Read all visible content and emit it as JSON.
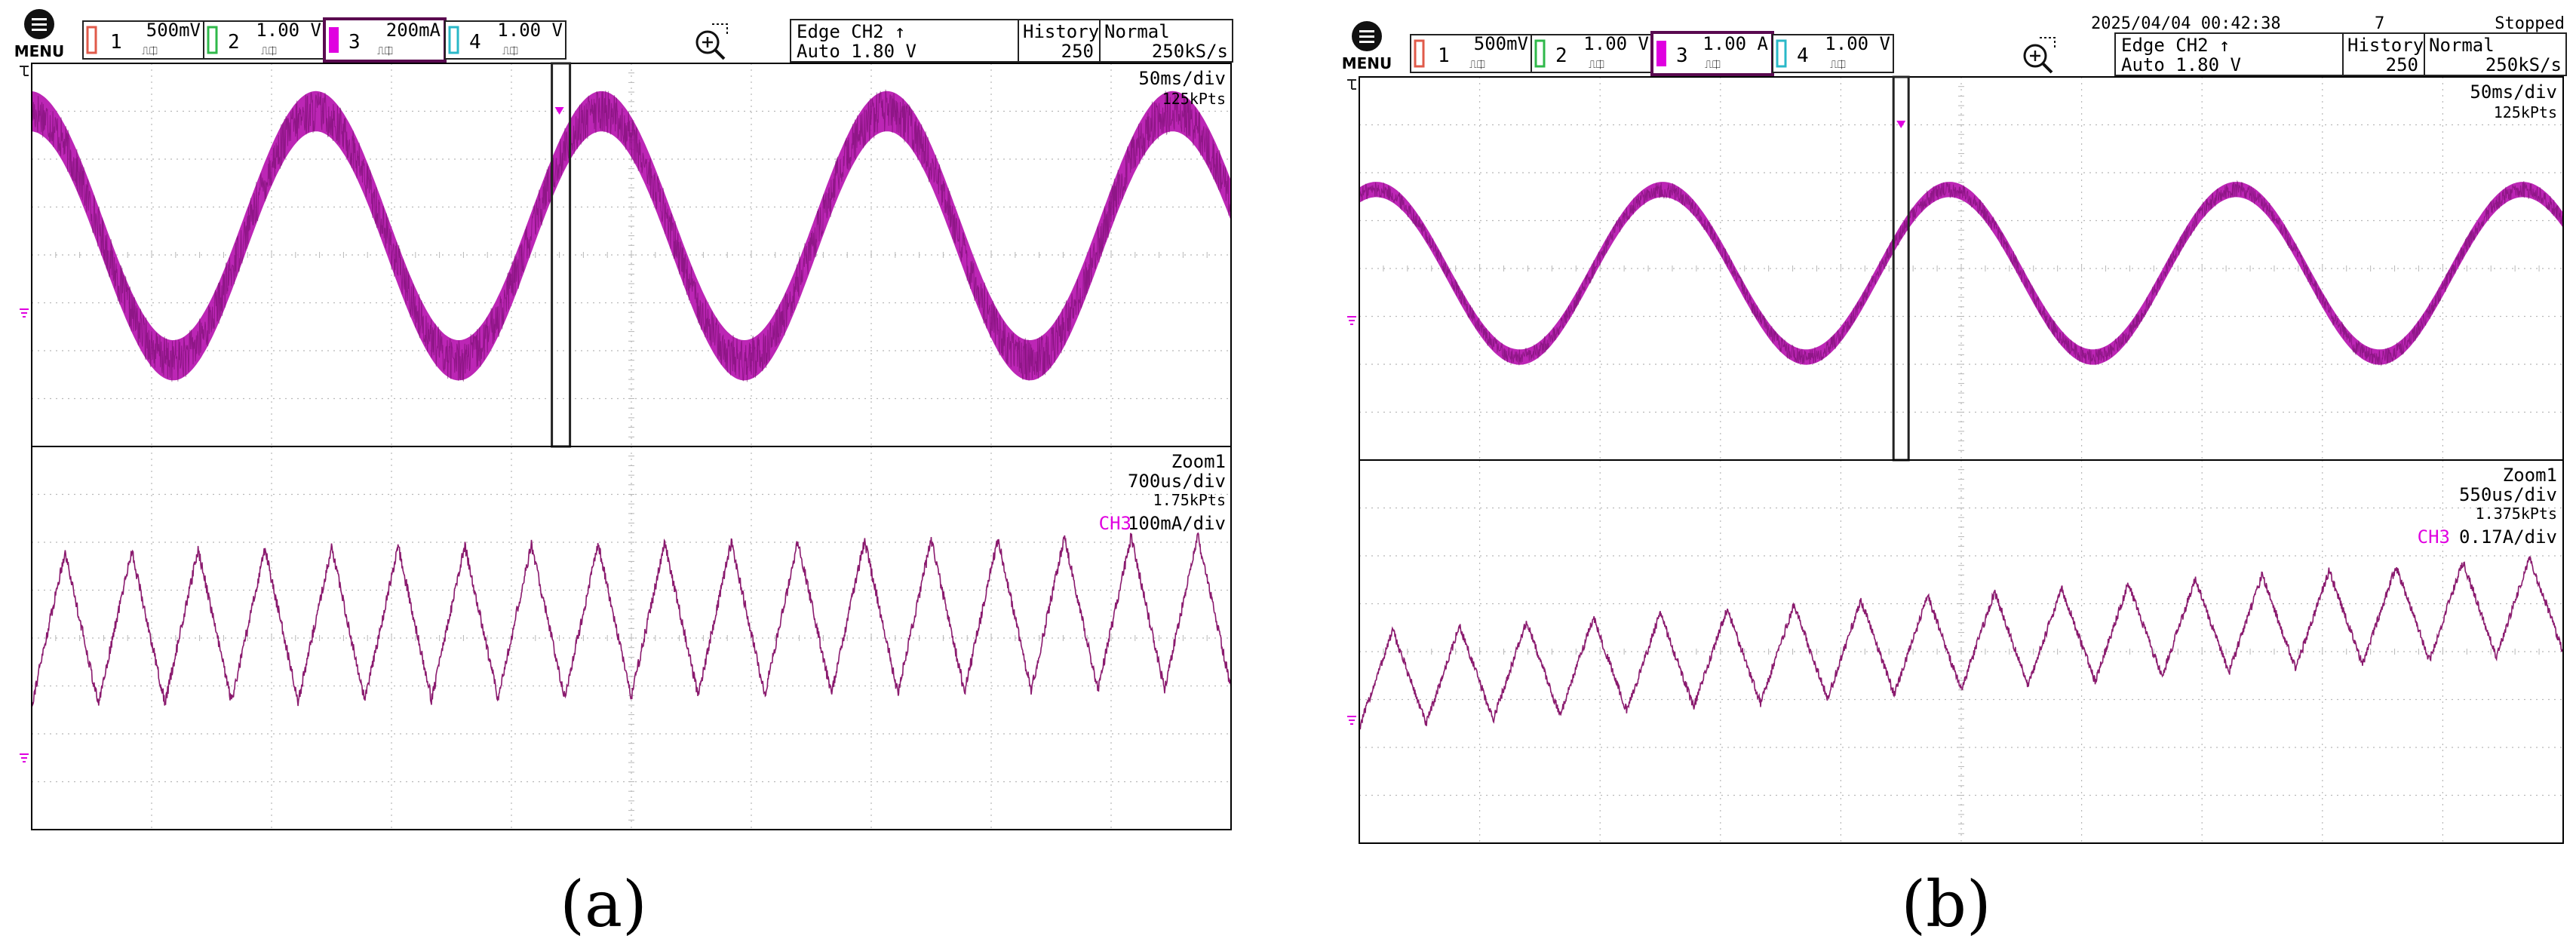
{
  "colors": {
    "ch1": "#e05a4a",
    "ch2": "#2fb84a",
    "ch3": "#e000e0",
    "ch4": "#2ab8c8",
    "trace_wide": "#b000a8",
    "trace_wide_dark": "#6a0a60",
    "trace_zoom": "#8a1a6e",
    "grid": "#b8b8b8",
    "frame": "#000000"
  },
  "panels": [
    {
      "caption": "(a)",
      "menu_label": "MENU",
      "date_time": "",
      "acq_count": "",
      "run_state": "",
      "channels": [
        {
          "num": "1",
          "scale": "500mV",
          "color_key": "ch1",
          "selected": false
        },
        {
          "num": "2",
          "scale": "1.00 V",
          "color_key": "ch2",
          "selected": false
        },
        {
          "num": "3",
          "scale": "200mA",
          "color_key": "ch3",
          "selected": true
        },
        {
          "num": "4",
          "scale": "1.00 V",
          "color_key": "ch4",
          "selected": false
        }
      ],
      "trigger": {
        "type": "Edge CH2 ↑",
        "mode": "Auto 1.80 V"
      },
      "history": {
        "label": "History",
        "value": "250"
      },
      "acq": {
        "mode": "Normal",
        "rate": "250kS/s"
      },
      "main": {
        "timebase": "50ms/div",
        "points": "125kPts"
      },
      "zoom": {
        "label": "Zoom1",
        "timebase": "700us/div",
        "points": "1.75kPts",
        "ch_label": "CH3",
        "ch_scale": "100mA/div"
      }
    },
    {
      "caption": "(b)",
      "menu_label": "MENU",
      "date_time": "2025/04/04 00:42:38",
      "acq_count": "7",
      "run_state": "Stopped",
      "channels": [
        {
          "num": "1",
          "scale": "500mV",
          "color_key": "ch1",
          "selected": false
        },
        {
          "num": "2",
          "scale": "1.00 V",
          "color_key": "ch2",
          "selected": false
        },
        {
          "num": "3",
          "scale": "1.00 A",
          "color_key": "ch3",
          "selected": true
        },
        {
          "num": "4",
          "scale": "1.00 V",
          "color_key": "ch4",
          "selected": false
        }
      ],
      "trigger": {
        "type": "Edge CH2 ↑",
        "mode": "Auto 1.80 V"
      },
      "history": {
        "label": "History",
        "value": "250"
      },
      "acq": {
        "mode": "Normal",
        "rate": "250kS/s"
      },
      "main": {
        "timebase": "50ms/div",
        "points": "125kPts"
      },
      "zoom": {
        "label": "Zoom1",
        "timebase": "550us/div",
        "points": "1.375kPts",
        "ch_label": "CH3",
        "ch_scale": "0.17A/div"
      }
    }
  ],
  "chart_data": [
    {
      "type": "line",
      "title": "",
      "grid": true,
      "x_divisions": 10,
      "main": {
        "x_unit": "div",
        "y_unit": "div",
        "xlim": [
          0,
          10
        ],
        "ylim": [
          -4,
          4
        ],
        "series": [
          {
            "name": "",
            "shape": "sine",
            "cycles": 4.2,
            "amplitude_div": 2.6,
            "offset_div": 0.4,
            "phase_rad": 1.6,
            "band_div": 0.42
          }
        ],
        "trigger_position_div": 4.4
      },
      "zoom": {
        "x_unit": "div",
        "y_unit": "div",
        "xlim": [
          0,
          10
        ],
        "ylim": [
          -4,
          4
        ],
        "series": [
          {
            "name": "",
            "shape": "triangle",
            "cycles": 18,
            "amplitude_div": 1.6,
            "offset_div": 0.2,
            "drift_div": 0.35,
            "noise_div": 0.12
          }
        ]
      }
    },
    {
      "type": "line",
      "title": "",
      "grid": true,
      "x_divisions": 10,
      "main": {
        "x_unit": "div",
        "y_unit": "div",
        "xlim": [
          0,
          10
        ],
        "ylim": [
          -4,
          4
        ],
        "series": [
          {
            "name": "",
            "shape": "sine",
            "cycles": 4.2,
            "amplitude_div": 1.75,
            "offset_div": -0.1,
            "phase_rad": 1.2,
            "band_div": 0.16
          }
        ],
        "trigger_position_div": 4.5
      },
      "zoom": {
        "x_unit": "div",
        "y_unit": "div",
        "xlim": [
          0,
          10
        ],
        "ylim": [
          -4,
          4
        ],
        "series": [
          {
            "name": "",
            "shape": "triangle",
            "cycles": 18,
            "amplitude_div": 1.0,
            "offset_div": -0.6,
            "drift_div": 1.6,
            "noise_div": 0.09
          }
        ]
      }
    }
  ]
}
